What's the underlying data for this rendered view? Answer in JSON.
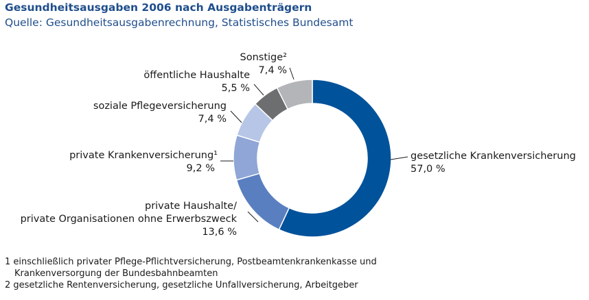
{
  "chart_data": {
    "type": "pie",
    "donut": true,
    "title": "Gesundheitsausgaben 2006 nach Ausgabenträgern",
    "subtitle": "Quelle: Gesundheitsausgabenrechnung, Statistisches Bundesamt",
    "slices": [
      {
        "name": "gesetzliche Krankenversicherung",
        "value": 57.0,
        "value_label": "57,0 %",
        "color": "#00529b"
      },
      {
        "name": "private Haushalte/ private Organisationen ohne Erwerbszweck",
        "label_lines": [
          "private Haushalte/",
          "private Organisationen ohne Erwerbszweck"
        ],
        "value": 13.6,
        "value_label": "13,6 %",
        "color": "#5a7fc0"
      },
      {
        "name": "private Krankenversicherung¹",
        "label_lines": [
          "private Krankenversicherung¹"
        ],
        "value": 9.2,
        "value_label": "9,2 %",
        "color": "#8fa6d6"
      },
      {
        "name": "soziale Pflegeversicherung",
        "label_lines": [
          "soziale Pflegeversicherung"
        ],
        "value": 7.4,
        "value_label": "7,4 %",
        "color": "#b7c6e6"
      },
      {
        "name": "öffentliche Haushalte",
        "label_lines": [
          "öffentliche Haushalte"
        ],
        "value": 5.5,
        "value_label": "5,5 %",
        "color": "#6d6e70"
      },
      {
        "name": "Sonstige²",
        "label_lines": [
          "Sonstige²"
        ],
        "value": 7.4,
        "value_label": "7,4 %",
        "color": "#b3b5b8"
      }
    ]
  },
  "footnotes": {
    "note1_line1": "1 einschließlich privater Pflege-Pflichtversicherung, Postbeamtenkrankenkasse und",
    "note1_line2": "Krankenversorgung der Bundesbahnbeamten",
    "note2": "2 gesetzliche Rentenversicherung, gesetzliche Unfallversicherung, Arbeitgeber"
  }
}
